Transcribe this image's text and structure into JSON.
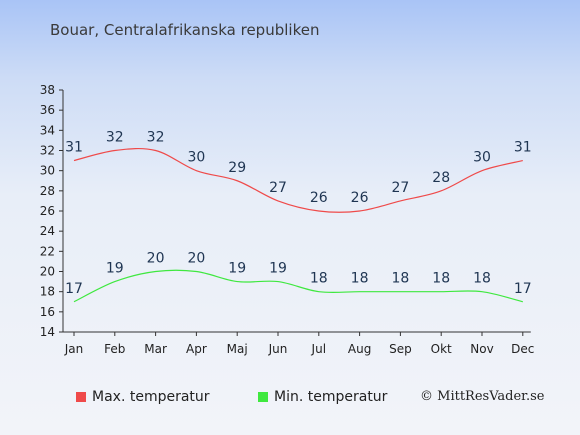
{
  "title": "Bouar, Centralafrikanska republiken",
  "credit": "© MittResVader.se",
  "colors": {
    "max": "#ef4a4a",
    "min": "#3fe83f",
    "axis": "#333333",
    "label": "#1f3552"
  },
  "chart_data": {
    "type": "line",
    "categories": [
      "Jan",
      "Feb",
      "Mar",
      "Apr",
      "Maj",
      "Jun",
      "Jul",
      "Aug",
      "Sep",
      "Okt",
      "Nov",
      "Dec"
    ],
    "ylim": [
      14,
      38
    ],
    "yticks": [
      14,
      16,
      18,
      20,
      22,
      24,
      26,
      28,
      30,
      32,
      34,
      36,
      38
    ],
    "legend_position": "bottom",
    "series": [
      {
        "name": "Max. temperatur",
        "values": [
          31,
          32,
          32,
          30,
          29,
          27,
          26,
          26,
          27,
          28,
          30,
          31
        ]
      },
      {
        "name": "Min. temperatur",
        "values": [
          17,
          19,
          20,
          20,
          19,
          19,
          18,
          18,
          18,
          18,
          18,
          17
        ]
      }
    ]
  }
}
